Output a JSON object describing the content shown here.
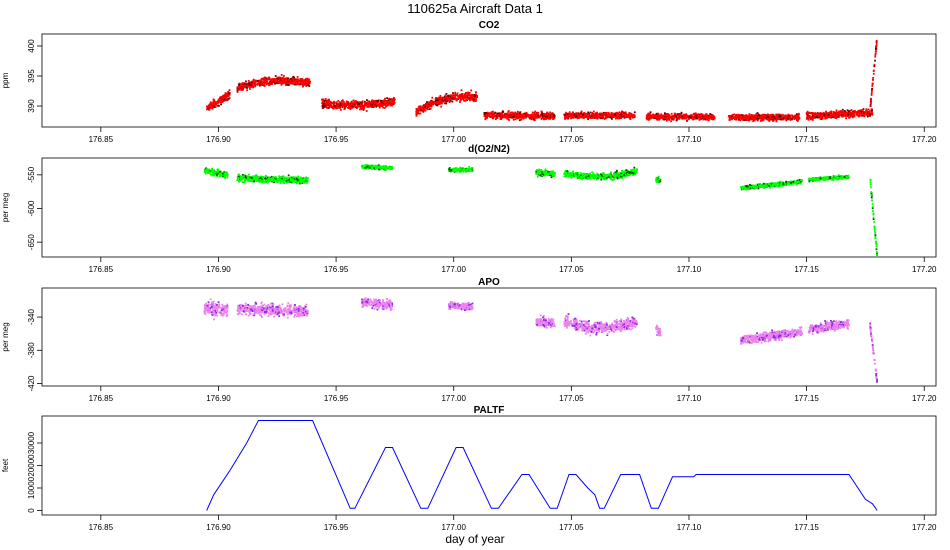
{
  "title": "110625a   Aircraft Data 1",
  "xlabel": "day of year",
  "chart_data": [
    {
      "type": "scatter",
      "title": "CO2",
      "ylabel": "ppm",
      "xlim": [
        176.825,
        177.205
      ],
      "ylim": [
        386.5,
        402.0
      ],
      "xticks": [
        "176.85",
        "176.90",
        "176.95",
        "177.00",
        "177.05",
        "177.10",
        "177.15",
        "177.20"
      ],
      "yticks": [
        "390",
        "395",
        "400"
      ],
      "color": "#ff0000",
      "edge_color": "#660000",
      "segments": [
        {
          "x": [
            176.895,
            176.905
          ],
          "y": [
            389.5,
            392.0
          ],
          "spread": 1.2
        },
        {
          "x": [
            176.908,
            176.939
          ],
          "y": [
            393.0,
            393.8
          ],
          "spread": 1.1,
          "hump": 0.8
        },
        {
          "x": [
            176.944,
            176.975
          ],
          "y": [
            390.5,
            390.8
          ],
          "spread": 1.2,
          "hump": -0.5
        },
        {
          "x": [
            176.984,
            177.01
          ],
          "y": [
            389.0,
            391.5
          ],
          "spread": 1.2,
          "hump": 1.0
        },
        {
          "x": [
            177.013,
            177.043
          ],
          "y": [
            388.5,
            388.3
          ],
          "spread": 1.0
        },
        {
          "x": [
            177.047,
            177.077
          ],
          "y": [
            388.4,
            388.4
          ],
          "spread": 0.9
        },
        {
          "x": [
            177.082,
            177.111
          ],
          "y": [
            388.2,
            388.2
          ],
          "spread": 0.9
        },
        {
          "x": [
            177.117,
            177.147
          ],
          "y": [
            388.1,
            388.1
          ],
          "spread": 0.9
        },
        {
          "x": [
            177.15,
            177.178
          ],
          "y": [
            388.3,
            388.9
          ],
          "spread": 1.0
        },
        {
          "x": [
            177.177,
            177.18
          ],
          "y": [
            389.5,
            401.5
          ],
          "spread": 0.6
        }
      ]
    },
    {
      "type": "scatter",
      "title": "d(O2/N2)",
      "ylabel": "per meg",
      "xlim": [
        176.825,
        177.205
      ],
      "ylim": [
        -672,
        -525
      ],
      "xticks": [
        "176.85",
        "176.90",
        "176.95",
        "177.00",
        "177.05",
        "177.10",
        "177.15",
        "177.20"
      ],
      "yticks": [
        "-550",
        "-600",
        "-650"
      ],
      "color": "#00ff00",
      "edge_color": "#005500",
      "segments": [
        {
          "x": [
            176.894,
            176.904
          ],
          "y": [
            -543,
            -550
          ],
          "spread": 8
        },
        {
          "x": [
            176.908,
            176.938
          ],
          "y": [
            -555,
            -558
          ],
          "spread": 8
        },
        {
          "x": [
            176.961,
            176.974
          ],
          "y": [
            -538,
            -540
          ],
          "spread": 5
        },
        {
          "x": [
            176.998,
            177.008
          ],
          "y": [
            -543,
            -542
          ],
          "spread": 5
        },
        {
          "x": [
            177.035,
            177.043
          ],
          "y": [
            -547,
            -548
          ],
          "spread": 8
        },
        {
          "x": [
            177.047,
            177.078
          ],
          "y": [
            -548,
            -545
          ],
          "spread": 8,
          "hump": -6
        },
        {
          "x": [
            177.086,
            177.088
          ],
          "y": [
            -555,
            -560
          ],
          "spread": 8
        },
        {
          "x": [
            177.122,
            177.148
          ],
          "y": [
            -570,
            -560
          ],
          "spread": 5
        },
        {
          "x": [
            177.151,
            177.168
          ],
          "y": [
            -557,
            -553
          ],
          "spread": 4
        },
        {
          "x": [
            177.177,
            177.18
          ],
          "y": [
            -555,
            -670
          ],
          "spread": 6
        }
      ]
    },
    {
      "type": "scatter",
      "title": "APO",
      "ylabel": "per meg",
      "xlim": [
        176.825,
        177.205
      ],
      "ylim": [
        -423,
        -305
      ],
      "xticks": [
        "176.85",
        "176.90",
        "176.95",
        "177.00",
        "177.05",
        "177.10",
        "177.15",
        "177.20"
      ],
      "yticks": [
        "-340",
        "-380",
        "-420"
      ],
      "color": "#ee82ee",
      "edge_color": "#8a2be2",
      "segments": [
        {
          "x": [
            176.894,
            176.904
          ],
          "y": [
            -330,
            -330
          ],
          "spread": 14
        },
        {
          "x": [
            176.908,
            176.938
          ],
          "y": [
            -330,
            -333
          ],
          "spread": 12
        },
        {
          "x": [
            176.961,
            176.974
          ],
          "y": [
            -322,
            -326
          ],
          "spread": 9
        },
        {
          "x": [
            176.998,
            177.008
          ],
          "y": [
            -326,
            -328
          ],
          "spread": 7
        },
        {
          "x": [
            177.035,
            177.043
          ],
          "y": [
            -345,
            -348
          ],
          "spread": 10
        },
        {
          "x": [
            177.047,
            177.078
          ],
          "y": [
            -345,
            -345
          ],
          "spread": 12,
          "hump": -8
        },
        {
          "x": [
            177.086,
            177.088
          ],
          "y": [
            -355,
            -360
          ],
          "spread": 10
        },
        {
          "x": [
            177.122,
            177.148
          ],
          "y": [
            -368,
            -358
          ],
          "spread": 9
        },
        {
          "x": [
            177.151,
            177.168
          ],
          "y": [
            -355,
            -348
          ],
          "spread": 9
        },
        {
          "x": [
            177.177,
            177.18
          ],
          "y": [
            -350,
            -418
          ],
          "spread": 6
        }
      ]
    },
    {
      "type": "line",
      "title": "PALTF",
      "ylabel": "feet",
      "xlim": [
        176.825,
        177.205
      ],
      "ylim": [
        -2000,
        42000
      ],
      "xticks": [
        "176.85",
        "176.90",
        "176.95",
        "177.00",
        "177.05",
        "177.10",
        "177.15",
        "177.20"
      ],
      "yticks": [
        "0",
        "10000",
        "20000",
        "30000"
      ],
      "color": "#0000ff",
      "x": [
        176.895,
        176.898,
        176.905,
        176.912,
        176.917,
        176.94,
        176.956,
        176.958,
        176.971,
        176.974,
        176.986,
        176.989,
        177.001,
        177.004,
        177.016,
        177.019,
        177.029,
        177.032,
        177.041,
        177.044,
        177.049,
        177.052,
        177.057,
        177.06,
        177.062,
        177.064,
        177.071,
        177.079,
        177.084,
        177.087,
        177.093,
        177.102,
        177.103,
        177.168,
        177.175,
        177.178,
        177.18
      ],
      "y": [
        0,
        7000,
        18000,
        30000,
        40000,
        40000,
        1000,
        1000,
        28000,
        28000,
        1000,
        1000,
        28000,
        28000,
        1000,
        1000,
        16000,
        16000,
        1000,
        1000,
        16000,
        16000,
        10000,
        7000,
        1000,
        1000,
        16000,
        16000,
        1000,
        1000,
        15000,
        15000,
        16000,
        16000,
        5000,
        3000,
        0
      ]
    }
  ]
}
